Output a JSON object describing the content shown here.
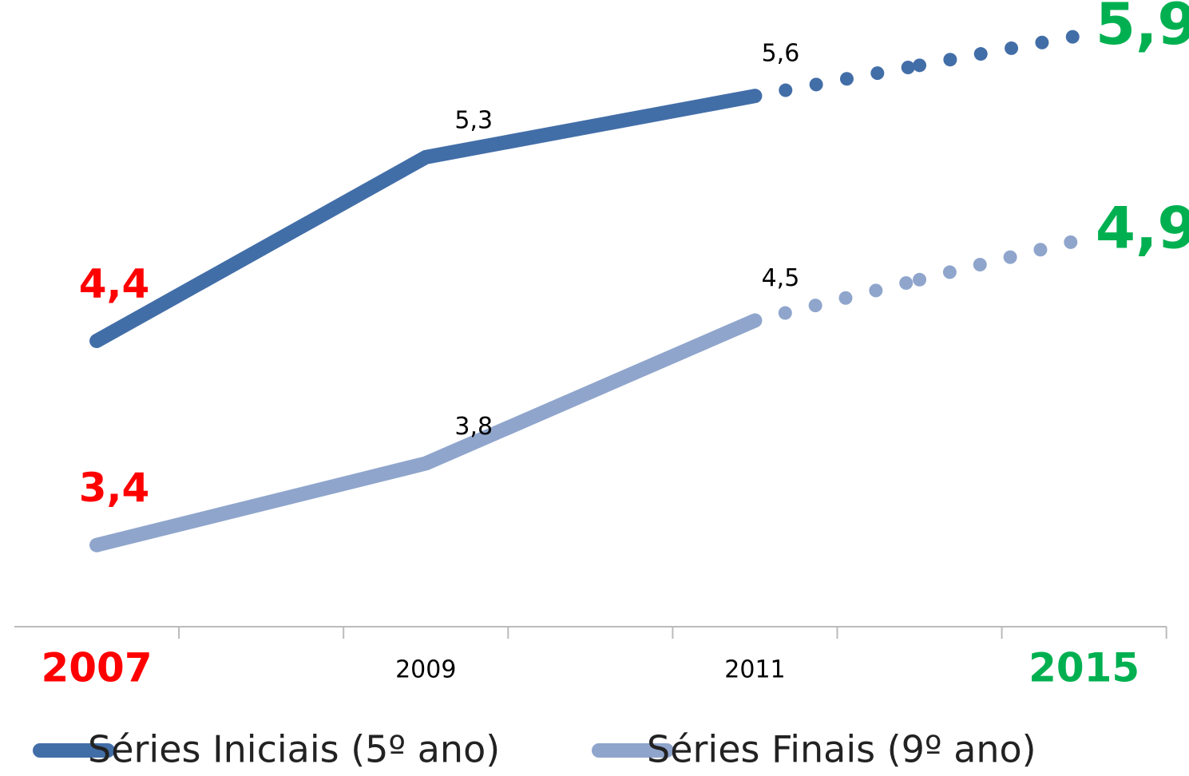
{
  "chart_data": {
    "type": "line",
    "categories": [
      "2007",
      "2009",
      "2011",
      null,
      "2015"
    ],
    "series": [
      {
        "name": "Séries Iniciais (5º ano)",
        "color": "#426ea8",
        "values": [
          4.4,
          5.3,
          5.6,
          5.75,
          5.9
        ],
        "value_labels": [
          "4,4",
          "5,3",
          "5,6",
          null,
          "5,9"
        ]
      },
      {
        "name": "Séries Finais (9º ano)",
        "color": "#8fa5cc",
        "values": [
          3.4,
          3.8,
          4.5,
          4.7,
          4.9
        ],
        "value_labels": [
          "3,4",
          "3,8",
          "4,5",
          null,
          "4,9"
        ]
      }
    ],
    "ylim": [
      3,
      6.07
    ],
    "projected_from_index": 2,
    "first_color": "#ff0000",
    "last_color": "#00b050",
    "legend": "bottom"
  }
}
